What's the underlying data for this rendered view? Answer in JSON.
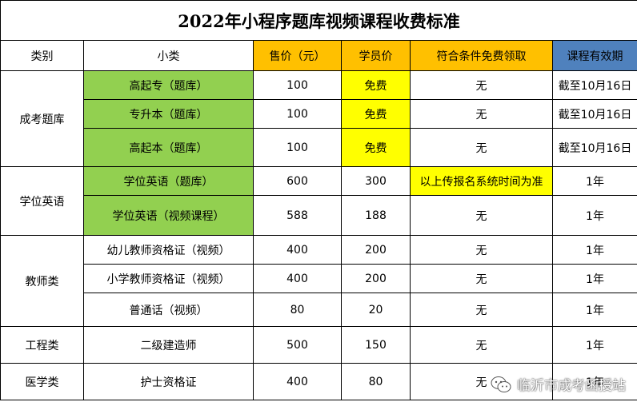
{
  "title": "2022年小程序题库视频课程收费标准",
  "headers": [
    "类别",
    "小类",
    "售价（元）",
    "学员价",
    "符合条件免费领取",
    "课程有效期"
  ],
  "rows": [
    {
      "category": "成考题库",
      "sub": "高起专（题库）",
      "price": "100",
      "member": "免费",
      "free": "无",
      "valid": "截至10月16日"
    },
    {
      "sub": "专升本（题库）",
      "price": "100",
      "member": "免费",
      "free": "无",
      "valid": "截至10月16日"
    },
    {
      "sub": "高起本（题库）",
      "price": "100",
      "member": "免费",
      "free": "无",
      "valid": "截至10月16日"
    },
    {
      "category": "学位英语",
      "sub": "学位英语（题库）",
      "price": "600",
      "member": "300",
      "free": "以上传报名系统时间为准",
      "valid": "1年"
    },
    {
      "sub": "学位英语（视频课程）",
      "price": "588",
      "member": "188",
      "free": "无",
      "valid": "1年"
    },
    {
      "category": "教师类",
      "sub": "幼儿教师资格证（视频）",
      "price": "400",
      "member": "200",
      "free": "无",
      "valid": "1年"
    },
    {
      "sub": "小学教师资格证（视频）",
      "price": "400",
      "member": "200",
      "free": "无",
      "valid": "1年"
    },
    {
      "sub": "普通话（视频）",
      "price": "80",
      "member": "20",
      "free": "无",
      "valid": "1年"
    },
    {
      "category": "工程类",
      "sub": "二级建造师",
      "price": "500",
      "member": "150",
      "free": "无",
      "valid": "1年"
    },
    {
      "category": "医学类",
      "sub": "护士资格证",
      "price": "400",
      "member": "80",
      "free": "无",
      "valid": "1年"
    }
  ],
  "watermark": "临沂市成考函授站",
  "colors": {
    "header_price": "#FFC000",
    "member_highlight": "#FFFF00",
    "validity_header": "#4F81BD",
    "subcategory_green": "#92D050"
  }
}
